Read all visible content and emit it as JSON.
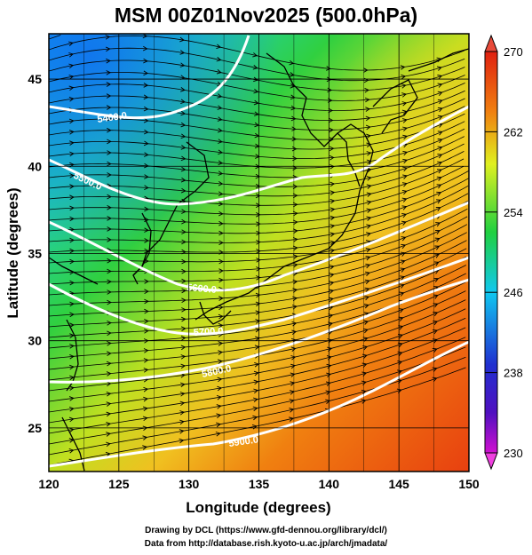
{
  "title": "MSM 00Z01Nov2025 (500.0hPa)",
  "map": {
    "lon_range": [
      120,
      150
    ],
    "lat_range": [
      22.5,
      47.6
    ],
    "x_ticks": [
      "120",
      "125",
      "130",
      "135",
      "140",
      "145",
      "150"
    ],
    "y_ticks": [
      "25",
      "30",
      "35",
      "40",
      "45"
    ],
    "xlabel": "Longitude (degrees)",
    "ylabel": "Latitude  (degrees)",
    "contour_labels": [
      "5400.0",
      "5500.0",
      "5600.0",
      "5700.0",
      "5800.0",
      "5900.0"
    ],
    "shaded_variable_range": [
      230,
      270
    ]
  },
  "colorbar": {
    "ticks": [
      "270",
      "262",
      "254",
      "246",
      "238",
      "230"
    ],
    "range": [
      230,
      270
    ],
    "colors": [
      "#d010d0",
      "#2020d0",
      "#10c8f0",
      "#20d040",
      "#f0f020",
      "#f08010",
      "#e02010"
    ]
  },
  "credits": {
    "line1": "Drawing by DCL (https://www.gfd-dennou.org/library/dcl/)",
    "line2": "Data from http://database.rish.kyoto-u.ac.jp/arch/jmadata/"
  }
}
